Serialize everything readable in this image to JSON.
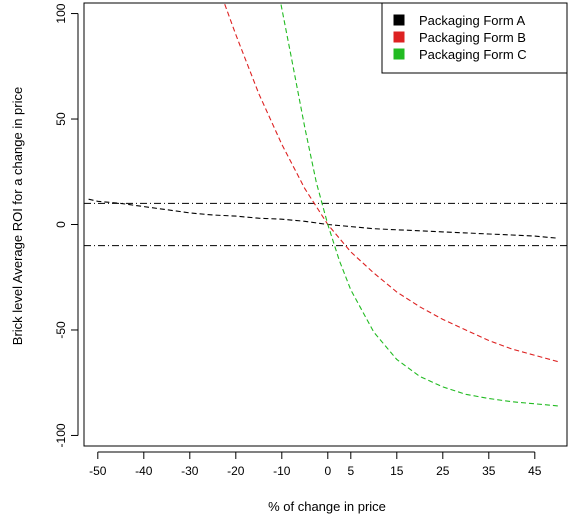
{
  "chart_data": {
    "type": "line",
    "xlabel": "% of change in price",
    "ylabel": "Brick level Average ROI for a change in price",
    "xlim": [
      -53,
      52
    ],
    "ylim": [
      -105,
      105
    ],
    "x_ticks": [
      -50,
      -40,
      -30,
      -20,
      -10,
      0,
      5,
      15,
      25,
      35,
      45
    ],
    "y_ticks": [
      -100,
      -50,
      0,
      50,
      100
    ],
    "reference_lines": [
      {
        "y": 10,
        "style": "dotdash",
        "color": "#000000"
      },
      {
        "y": -10,
        "style": "dotdash",
        "color": "#000000"
      }
    ],
    "series": [
      {
        "name": "Packaging Form A",
        "color": "#000000",
        "style": "dashed",
        "x": [
          -52,
          -50,
          -45,
          -40,
          -35,
          -30,
          -25,
          -20,
          -15,
          -10,
          -5,
          0,
          5,
          10,
          15,
          20,
          25,
          30,
          35,
          40,
          45,
          50
        ],
        "y": [
          12,
          11,
          10,
          8.5,
          7,
          5.5,
          4.5,
          4,
          3,
          2.5,
          1.5,
          0,
          -1,
          -2,
          -2.5,
          -3,
          -3.5,
          -4,
          -4.5,
          -5,
          -5.5,
          -6.5
        ]
      },
      {
        "name": "Packaging Form B",
        "color": "#dd2222",
        "style": "dashed",
        "x": [
          -23,
          -20,
          -15,
          -10,
          -5,
          0,
          5,
          10,
          15,
          20,
          25,
          30,
          35,
          40,
          45,
          50
        ],
        "y": [
          108,
          90,
          62,
          38,
          17,
          0,
          -13,
          -23,
          -32,
          -39,
          -45,
          -50,
          -55,
          -59,
          -62,
          -65
        ]
      },
      {
        "name": "Packaging Form C",
        "color": "#22bb22",
        "style": "dashed",
        "x": [
          -10.5,
          -8,
          -5,
          -2.5,
          0,
          2.5,
          5,
          10,
          15,
          20,
          25,
          30,
          35,
          40,
          45,
          50
        ],
        "y": [
          108,
          80,
          46,
          20,
          0,
          -17,
          -31,
          -51,
          -64,
          -72,
          -77,
          -80.5,
          -82.5,
          -84,
          -85,
          -86
        ]
      }
    ],
    "legend": {
      "position": "top-right",
      "entries": [
        "Packaging Form A",
        "Packaging Form B",
        "Packaging Form C"
      ]
    },
    "grid": false
  }
}
